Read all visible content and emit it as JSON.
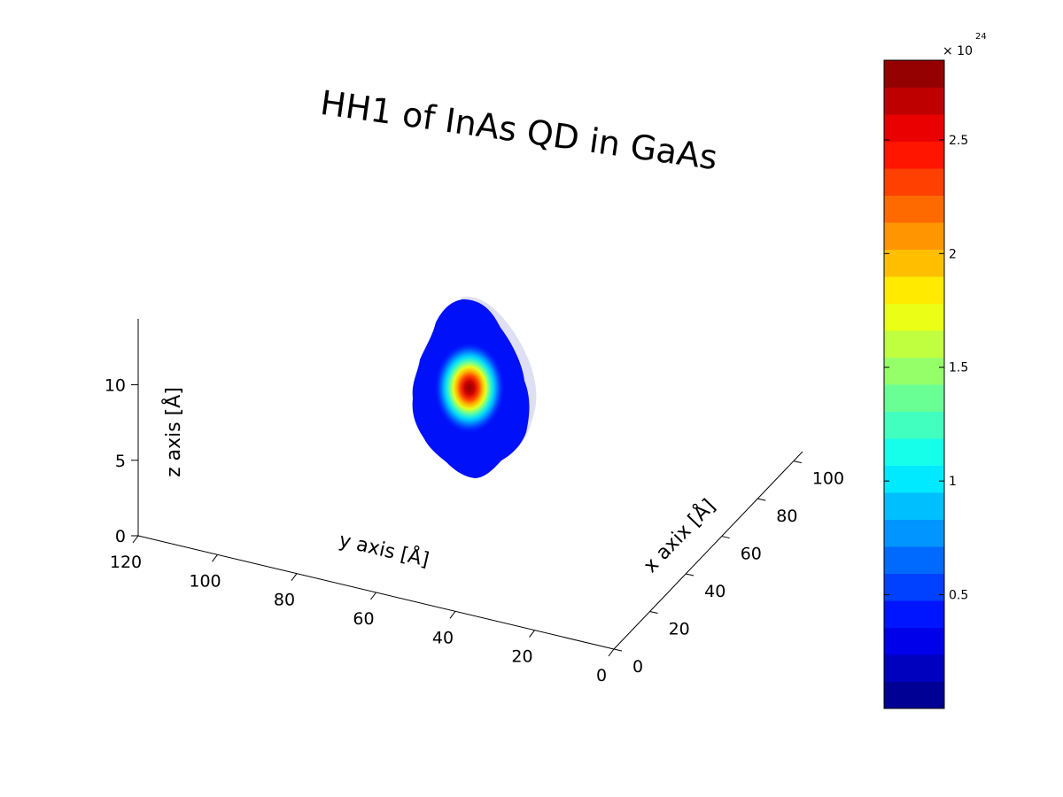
{
  "chart_data": {
    "type": "surface3d",
    "title": "HH1 of InAs QD in GaAs",
    "xlabel": "x axix [Å]",
    "ylabel": "y axis [Å]",
    "zlabel": "z axis [Å]",
    "x_ticks": [
      0,
      20,
      40,
      60,
      80,
      100
    ],
    "y_ticks": [
      0,
      20,
      40,
      60,
      80,
      100,
      120
    ],
    "z_ticks": [
      0,
      5,
      10
    ],
    "x_tick_labels": [
      "0",
      "20",
      "40",
      "60",
      "80",
      "100"
    ],
    "y_tick_labels": [
      "0",
      "20",
      "40",
      "60",
      "80",
      "100",
      "120"
    ],
    "z_tick_labels": [
      "0",
      "5",
      "10"
    ],
    "xlim": [
      0,
      105
    ],
    "ylim": [
      0,
      120
    ],
    "zlim": [
      0,
      14
    ],
    "grid": false,
    "colormap": "jet",
    "colorbar": {
      "location": "right",
      "range": [
        0,
        2.85
      ],
      "levels": 24,
      "ticks": [
        0.5,
        1,
        1.5,
        2,
        2.5
      ],
      "tick_labels": [
        "0.5",
        "1",
        "1.5",
        "2",
        "2.5"
      ],
      "exponent_label": "× 10",
      "exponent": "24"
    },
    "isosurface": {
      "description": "probability density of heavy-hole ground state",
      "peak_value": 2.8,
      "outer_value": 0.1
    }
  }
}
